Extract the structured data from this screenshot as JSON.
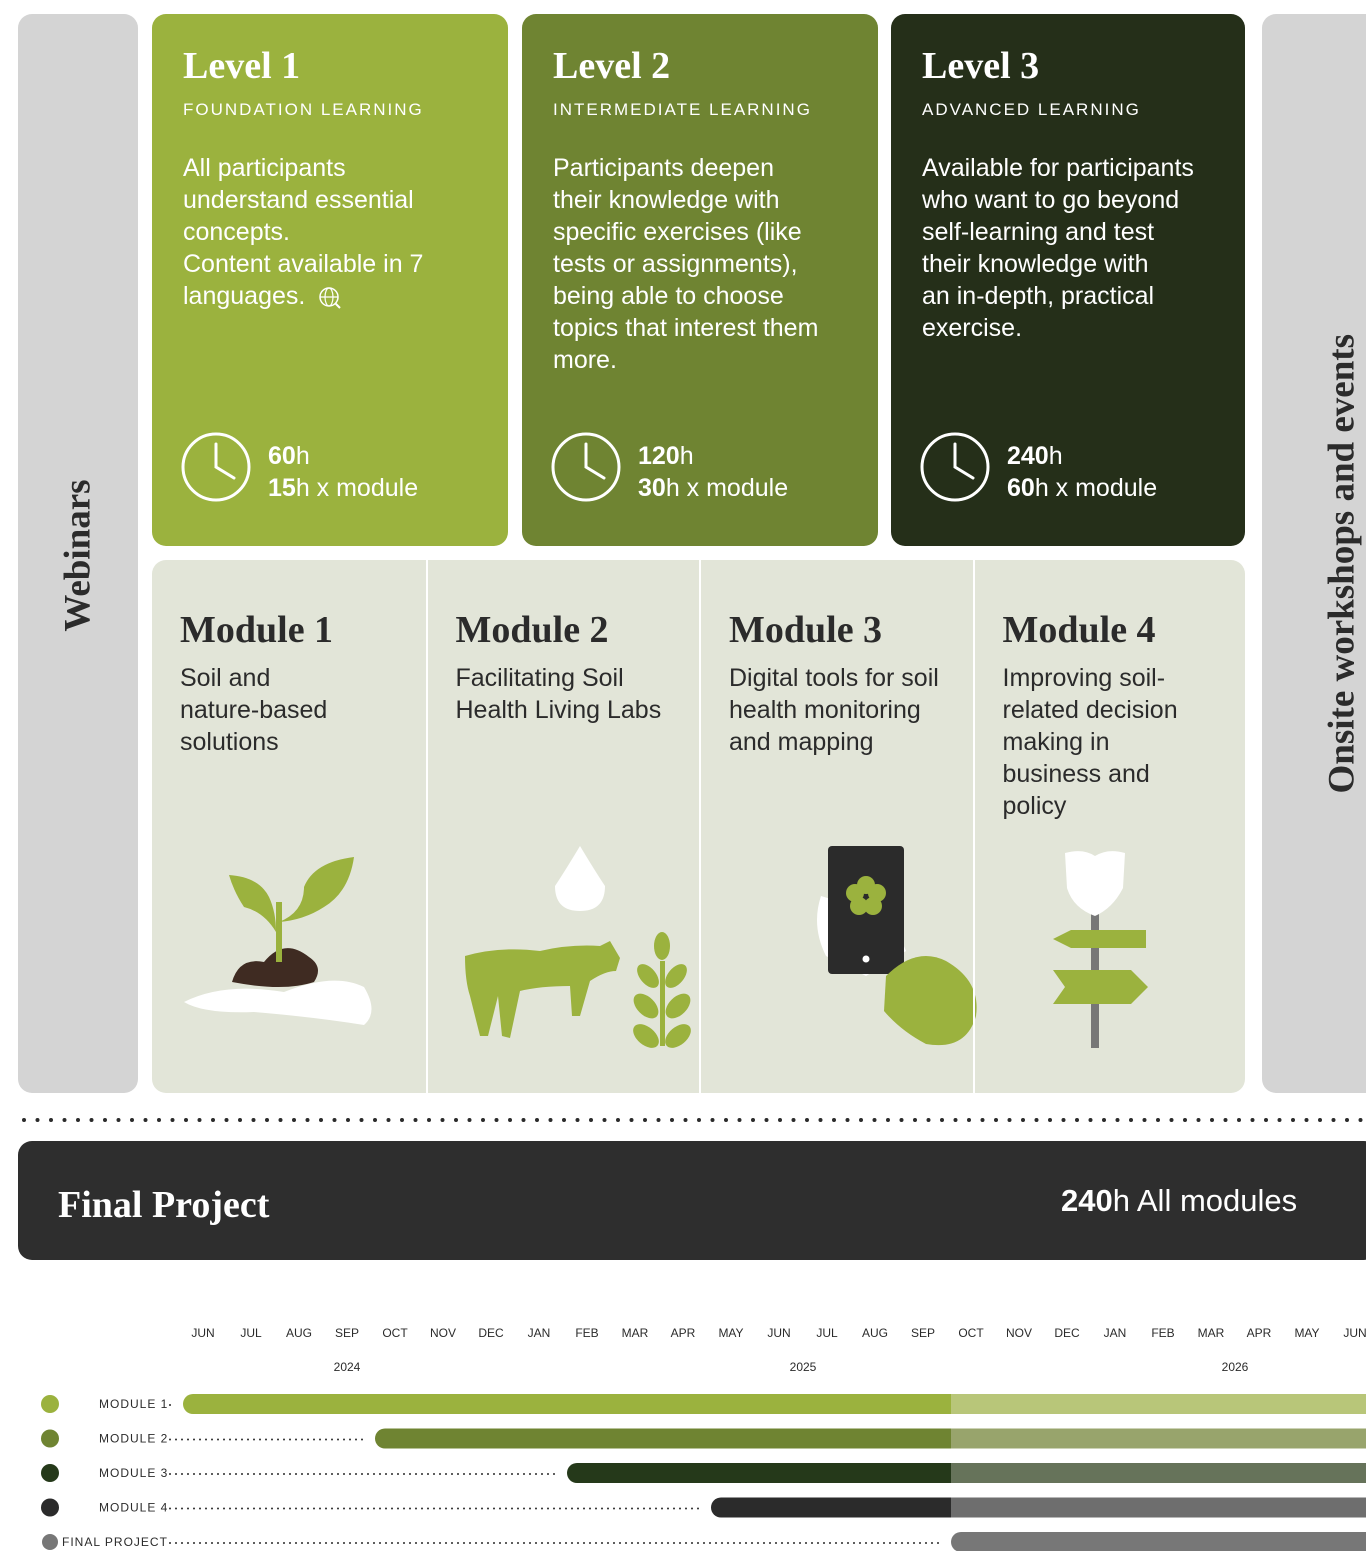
{
  "side_labels": {
    "left": "Webinars",
    "right": "Onsite workshops and events"
  },
  "levels": [
    {
      "title": "Level 1",
      "subtitle": "FOUNDATION LEARNING",
      "description": [
        "All participants",
        "understand essential",
        "concepts.",
        "Content available in 7",
        "languages."
      ],
      "total_hours": "60",
      "total_unit": "h",
      "module_hours": "15",
      "module_unit": "h x module",
      "color": "#9bb23e"
    },
    {
      "title": "Level 2",
      "subtitle": "INTERMEDIATE LEARNING",
      "description": [
        "Participants deepen",
        "their knowledge with",
        "specific exercises (like",
        "tests or assignments),",
        "being able to choose",
        "topics that interest them",
        "more."
      ],
      "total_hours": "120",
      "total_unit": "h",
      "module_hours": "30",
      "module_unit": "h x module",
      "color": "#6f8432"
    },
    {
      "title": "Level 3",
      "subtitle": "ADVANCED LEARNING",
      "description": [
        "Available for participants",
        "who want to go beyond",
        "self-learning and test",
        "their knowledge with",
        "an in-depth, practical",
        "exercise."
      ],
      "total_hours": "240",
      "total_unit": "h",
      "module_hours": "60",
      "module_unit": "h x module",
      "color": "#252f19"
    }
  ],
  "modules": [
    {
      "title": "Module 1",
      "description": [
        "Soil and",
        "nature-based",
        "solutions"
      ]
    },
    {
      "title": "Module 2",
      "description": [
        "Facilitating Soil",
        "Health Living Labs"
      ]
    },
    {
      "title": "Module 3",
      "description": [
        "Digital tools for soil",
        "health monitoring",
        "and mapping"
      ]
    },
    {
      "title": "Module 4",
      "description": [
        "Improving soil-",
        "related decision",
        "making in",
        "business and",
        "policy"
      ]
    }
  ],
  "final_project": {
    "title": "Final Project",
    "hours": "240",
    "unit": "h All modules"
  },
  "timeline": {
    "months": [
      "JUN",
      "JUL",
      "AUG",
      "SEP",
      "OCT",
      "NOV",
      "DEC",
      "JAN",
      "FEB",
      "MAR",
      "APR",
      "MAY",
      "JUN",
      "JUL",
      "AUG",
      "SEP",
      "OCT",
      "NOV",
      "DEC",
      "JAN",
      "FEB",
      "MAR",
      "APR",
      "MAY",
      "JUN"
    ],
    "years": [
      "2024",
      "2025",
      "2026"
    ],
    "split": 16,
    "rows": [
      {
        "label": "MODULE 1",
        "color": "#9bb23e",
        "light_color": "#b8c679",
        "start": 0
      },
      {
        "label": "MODULE 2",
        "color": "#6f8432",
        "light_color": "#98a46c",
        "start": 4
      },
      {
        "label": "MODULE 3",
        "color": "#25391a",
        "light_color": "#66735a",
        "start": 8
      },
      {
        "label": "MODULE 4",
        "color": "#2b2b2b",
        "light_color": "#6e6e6e",
        "start": 11
      },
      {
        "label": "FINAL PROJECT",
        "color": "#777777",
        "light_color": "#777777",
        "start": 16
      }
    ]
  }
}
